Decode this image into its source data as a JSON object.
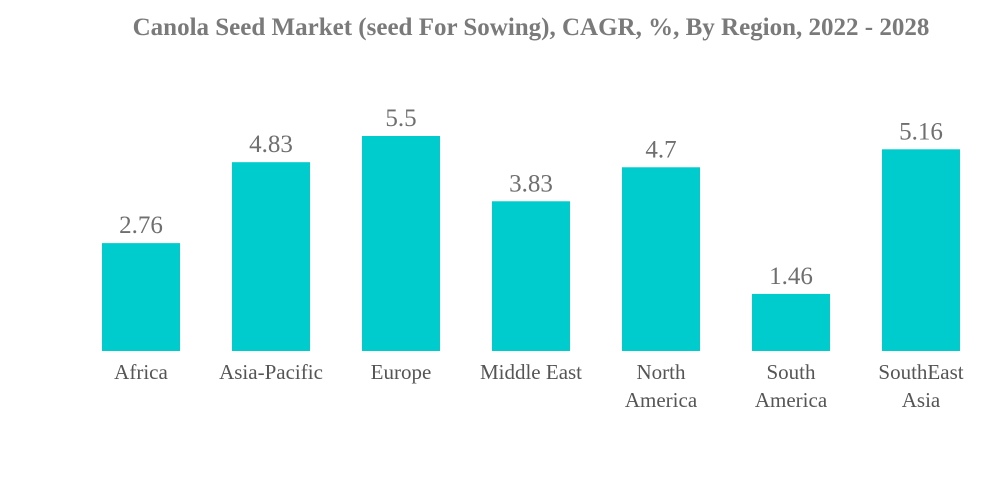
{
  "chart_data": {
    "type": "bar",
    "title": "Canola Seed Market (seed For Sowing), CAGR, %, By Region, 2022 - 2028",
    "categories": [
      "Africa",
      "Asia-Pacific",
      "Europe",
      "Middle East",
      "North America",
      "South America",
      "SouthEast Asia"
    ],
    "category_lines": [
      [
        "Africa"
      ],
      [
        "Asia-Pacific"
      ],
      [
        "Europe"
      ],
      [
        "Middle East"
      ],
      [
        "North",
        "America"
      ],
      [
        "South",
        "America"
      ],
      [
        "SouthEast",
        "Asia"
      ]
    ],
    "values": [
      2.76,
      4.83,
      5.5,
      3.83,
      4.7,
      1.46,
      5.16
    ],
    "value_labels": [
      "2.76",
      "4.83",
      "5.5",
      "3.83",
      "4.7",
      "1.46",
      "5.16"
    ],
    "xlabel": "",
    "ylabel": "",
    "ylim": [
      0,
      5.5
    ],
    "grid": false,
    "bar_color": "#00cccd",
    "title_color": "#7a7a7a"
  }
}
